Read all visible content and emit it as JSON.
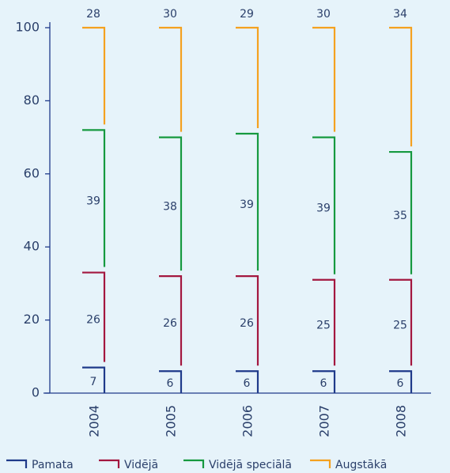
{
  "chart_data": {
    "type": "bracket_stack",
    "categories": [
      "2004",
      "2005",
      "2006",
      "2007",
      "2008"
    ],
    "series": [
      {
        "name": "Pamata",
        "color": "#1f3a8a",
        "values": [
          7,
          6,
          6,
          6,
          6
        ]
      },
      {
        "name": "Vidējā",
        "color": "#a3173f",
        "values": [
          26,
          26,
          26,
          25,
          25
        ]
      },
      {
        "name": "Vidējā speciālā",
        "color": "#16993f",
        "values": [
          39,
          38,
          39,
          39,
          35
        ]
      },
      {
        "name": "Augstākā",
        "color": "#f4a11f",
        "values": [
          28,
          30,
          29,
          30,
          34
        ]
      }
    ],
    "ylim": [
      0,
      100
    ],
    "yticks": [
      0,
      20,
      40,
      60,
      80,
      100
    ],
    "grid": false
  }
}
